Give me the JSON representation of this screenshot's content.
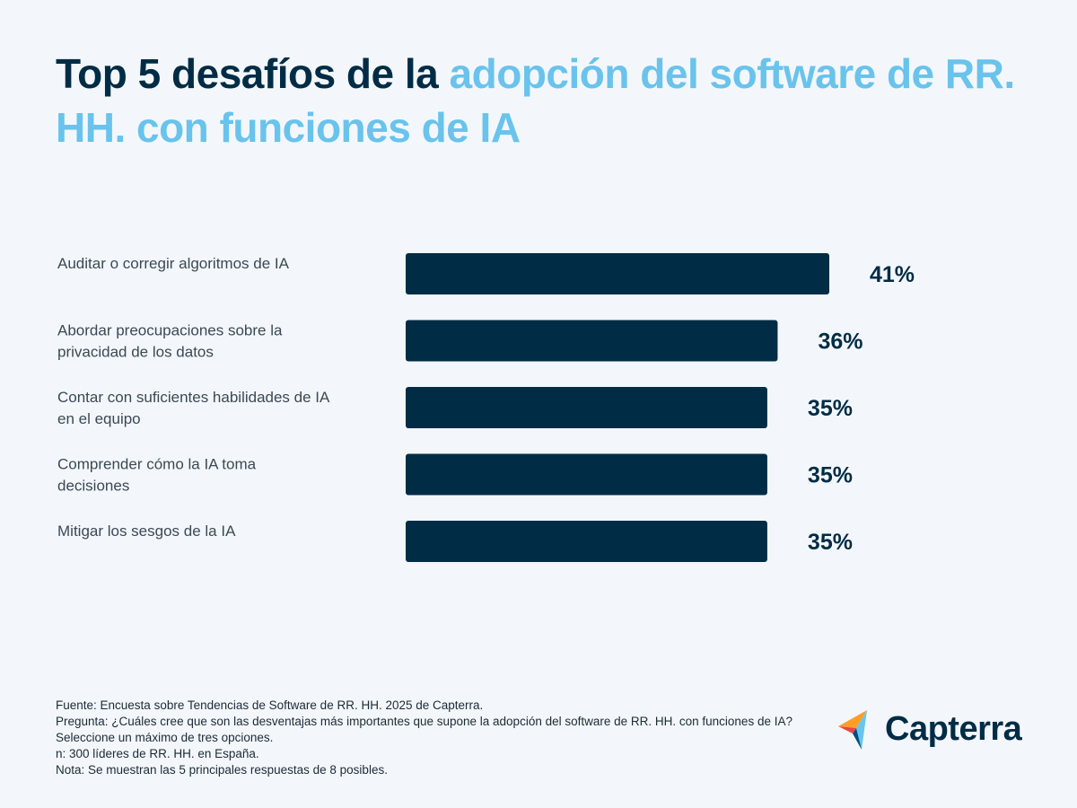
{
  "title": {
    "part1": "Top 5 desafíos de la ",
    "part2": "adopción del software de RR. HH. con funciones de IA"
  },
  "colors": {
    "bar": "#012c45",
    "accent": "#69c3ec",
    "background": "#f3f7fb"
  },
  "chart_data": {
    "type": "bar",
    "orientation": "horizontal",
    "title": "Top 5 desafíos de la adopción del software de RR. HH. con funciones de IA",
    "categories": [
      [
        "Auditar o corregir algoritmos de IA"
      ],
      [
        "Abordar preocupaciones sobre la",
        "privacidad de los datos"
      ],
      [
        "Contar con suficientes habilidades de IA",
        "en el equipo"
      ],
      [
        "Comprender cómo la IA toma",
        "decisiones"
      ],
      [
        "Mitigar los sesgos de la IA"
      ]
    ],
    "values": [
      41,
      36,
      35,
      35,
      35
    ],
    "value_labels": [
      "41%",
      "36%",
      "35%",
      "35%",
      "35%"
    ],
    "unit": "%",
    "xlabel": "",
    "ylabel": "",
    "xlim": [
      0,
      100
    ]
  },
  "footer": {
    "lines": [
      "Fuente: Encuesta sobre Tendencias de Software de RR. HH. 2025 de Capterra.",
      "Pregunta: ¿Cuáles cree que son las desventajas más importantes que supone la adopción del software de RR. HH. con funciones de IA? Seleccione un máximo de tres opciones.",
      "n: 300 líderes de RR. HH. en España.",
      "Nota: Se muestran las 5 principales respuestas de 8 posibles."
    ]
  },
  "logo": {
    "text": "Capterra",
    "icon": "capterra-arrow-icon"
  }
}
